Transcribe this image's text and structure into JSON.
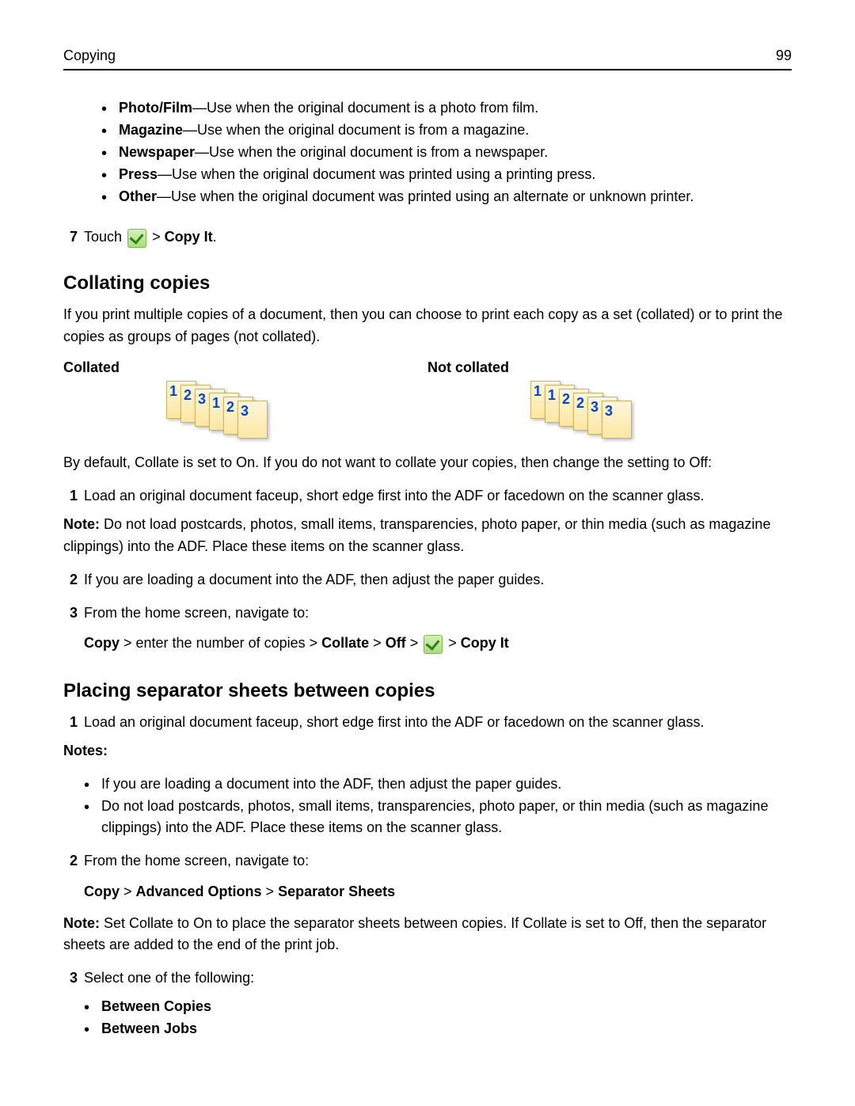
{
  "header": {
    "section": "Copying",
    "page_number": "99"
  },
  "media_types": [
    {
      "name": "Photo/Film",
      "desc": "—Use when the original document is a photo from film."
    },
    {
      "name": "Magazine",
      "desc": "—Use when the original document is from a magazine."
    },
    {
      "name": "Newspaper",
      "desc": "—Use when the original document is from a newspaper."
    },
    {
      "name": "Press",
      "desc": "—Use when the original document was printed using a printing press."
    },
    {
      "name": "Other",
      "desc": "—Use when the original document was printed using an alternate or unknown printer."
    }
  ],
  "step7": {
    "num": "7",
    "pre": "Touch ",
    "post": " > ",
    "copy_it": "Copy It",
    "dot": "."
  },
  "collating": {
    "heading": "Collating copies",
    "intro": "If you print multiple copies of a document, then you can choose to print each copy as a set (collated) or to print the copies as groups of pages (not collated).",
    "label_collated": "Collated",
    "label_not_collated": "Not collated",
    "collated_pages": [
      "1",
      "2",
      "3",
      "1",
      "2",
      "3"
    ],
    "not_collated_pages": [
      "1",
      "1",
      "2",
      "2",
      "3",
      "3"
    ],
    "default_line": "By default, Collate is set to On. If you do not want to collate your copies, then change the setting to Off:",
    "steps": {
      "s1": {
        "num": "1",
        "text": "Load an original document faceup, short edge first into the ADF or facedown on the scanner glass.",
        "note_label": "Note:",
        "note_text": " Do not load postcards, photos, small items, transparencies, photo paper, or thin media (such as magazine clippings) into the ADF. Place these items on the scanner glass."
      },
      "s2": {
        "num": "2",
        "text": "If you are loading a document into the ADF, then adjust the paper guides."
      },
      "s3": {
        "num": "3",
        "text": "From the home screen, navigate to:",
        "nav": {
          "copy": "Copy",
          "mid": " > enter the number of copies > ",
          "collate": "Collate",
          "gt1": " > ",
          "off": "Off",
          "gt2": " > ",
          "gt3": " > ",
          "copy_it": "Copy It"
        }
      }
    }
  },
  "separator": {
    "heading": "Placing separator sheets between copies",
    "s1": {
      "num": "1",
      "text": "Load an original document faceup, short edge first into the ADF or facedown on the scanner glass.",
      "notes_label": "Notes:",
      "bullets": [
        "If you are loading a document into the ADF, then adjust the paper guides.",
        "Do not load postcards, photos, small items, transparencies, photo paper, or thin media (such as magazine clippings) into the ADF. Place these items on the scanner glass."
      ]
    },
    "s2": {
      "num": "2",
      "text": "From the home screen, navigate to:",
      "nav": {
        "copy": "Copy",
        "gt1": " > ",
        "adv": "Advanced Options",
        "gt2": " > ",
        "sep": "Separator Sheets"
      },
      "note_label": "Note:",
      "note_text": " Set Collate to On to place the separator sheets between copies. If Collate is set to Off, then the separator sheets are added to the end of the print job."
    },
    "s3": {
      "num": "3",
      "text": "Select one of the following:",
      "options": [
        "Between Copies",
        "Between Jobs"
      ]
    }
  }
}
